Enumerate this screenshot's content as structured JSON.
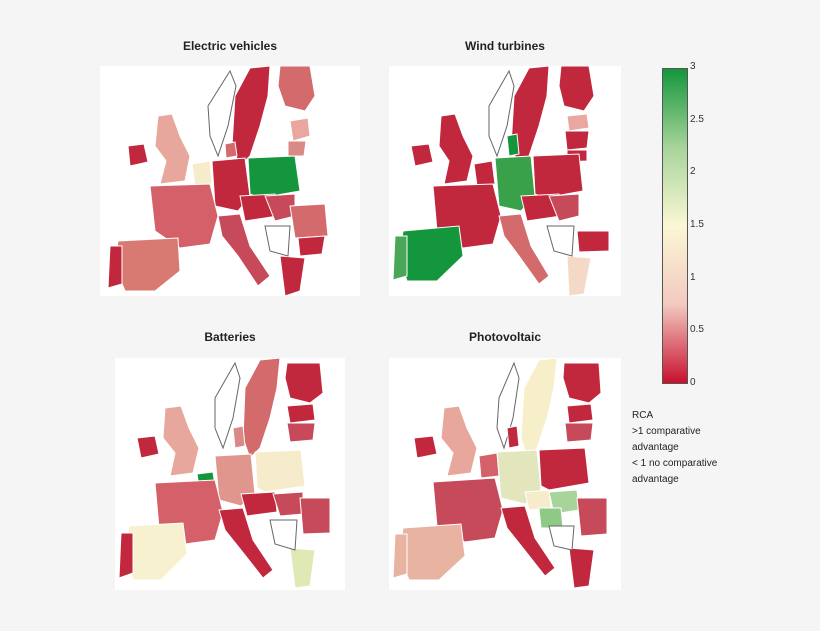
{
  "panels": [
    {
      "title": "Electric vehicles"
    },
    {
      "title": "Wind turbines"
    },
    {
      "title": "Batteries"
    },
    {
      "title": "Photovoltaic"
    }
  ],
  "colorbar": {
    "ticks": [
      "3",
      "2.5",
      "2",
      "1.5",
      "1",
      "0.5",
      "0"
    ],
    "min": 0,
    "max": 3,
    "colors": [
      "#c8102e",
      "#f2c9c0",
      "#fbf7d4",
      "#a7d49a",
      "#14963c"
    ]
  },
  "legend": {
    "line1": "RCA",
    "line2": ">1 comparative",
    "line3": "advantage",
    "line4": "< 1 no comparative",
    "line5": "advantage"
  }
}
